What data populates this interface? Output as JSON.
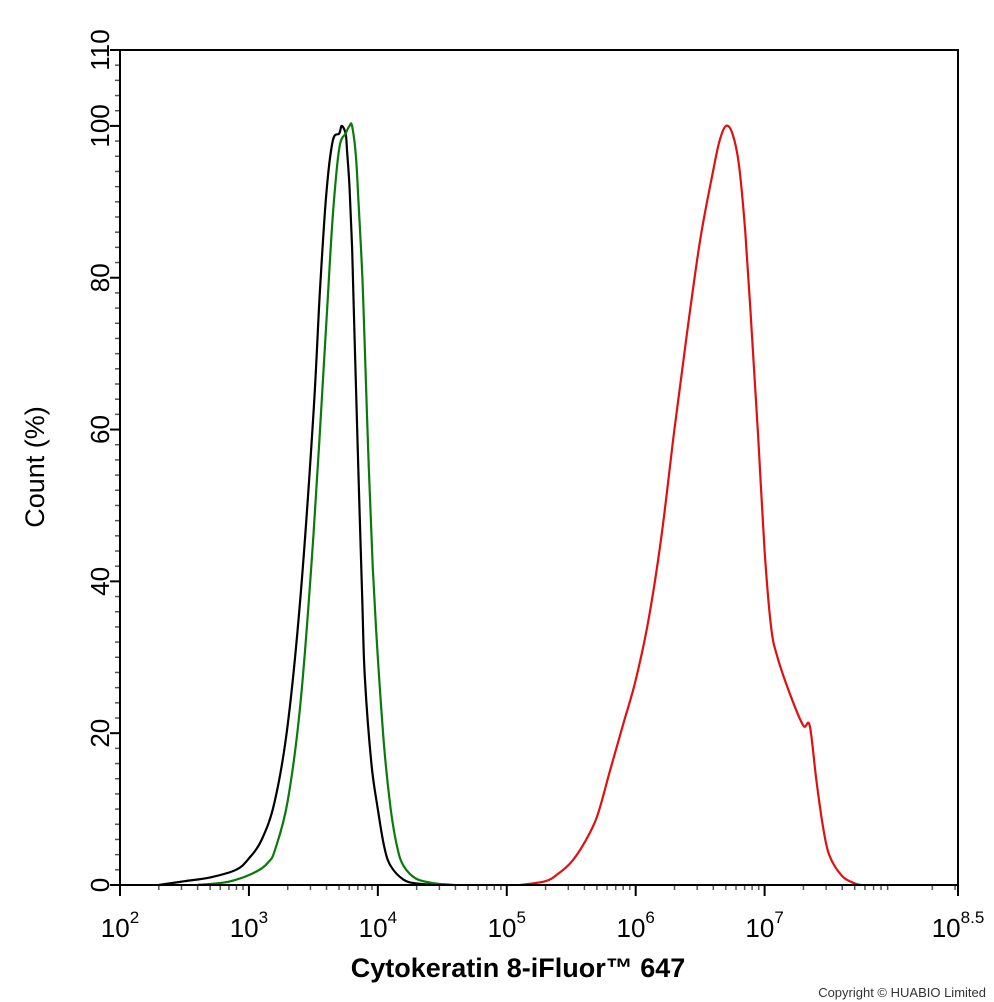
{
  "chart_data": {
    "type": "line",
    "title": "",
    "xlabel": "Cytokeratin 8-iFluor™ 647",
    "ylabel": "Count  (%)",
    "xscale": "log",
    "xlim_log10": [
      2,
      8.5
    ],
    "ylim": [
      0,
      110
    ],
    "x_ticks": [
      {
        "base": "10",
        "exp": "2"
      },
      {
        "base": "10",
        "exp": "3"
      },
      {
        "base": "10",
        "exp": "4"
      },
      {
        "base": "10",
        "exp": "5"
      },
      {
        "base": "10",
        "exp": "6"
      },
      {
        "base": "10",
        "exp": "7"
      },
      {
        "base": "10",
        "exp": "8.5"
      }
    ],
    "y_ticks": [
      "0",
      "20",
      "40",
      "60",
      "80",
      "100",
      "110"
    ],
    "grid": false,
    "legend": "none",
    "series": [
      {
        "color": "#000000",
        "log10_x": [
          2.3,
          2.5,
          2.7,
          2.9,
          3.0,
          3.1,
          3.2,
          3.3,
          3.4,
          3.5,
          3.55,
          3.6,
          3.65,
          3.7,
          3.72,
          3.75,
          3.76,
          3.78,
          3.8,
          3.82,
          3.85,
          3.88,
          3.9,
          3.95,
          4.0,
          4.05,
          4.1,
          4.2,
          4.3,
          4.45
        ],
        "values": [
          0,
          0.5,
          1,
          2,
          3.5,
          6,
          11,
          21,
          38,
          62,
          78,
          91,
          98,
          99,
          100,
          99,
          97,
          92,
          84,
          72,
          54,
          37,
          27,
          16,
          10,
          5,
          2.5,
          0.7,
          0.2,
          0
        ]
      },
      {
        "color": "#0a7a0a",
        "log10_x": [
          2.6,
          2.8,
          2.9,
          3.0,
          3.1,
          3.15,
          3.2,
          3.3,
          3.4,
          3.5,
          3.6,
          3.65,
          3.7,
          3.75,
          3.78,
          3.8,
          3.83,
          3.85,
          3.88,
          3.9,
          3.93,
          3.96,
          4.0,
          4.05,
          4.1,
          4.15,
          4.2,
          4.3,
          4.45,
          4.6
        ],
        "values": [
          0,
          0.3,
          0.7,
          1.3,
          2.2,
          3,
          4.5,
          11,
          24,
          46,
          74,
          88,
          97,
          99,
          100,
          100,
          96,
          90,
          80,
          70,
          55,
          42,
          30,
          18,
          10,
          5,
          2.5,
          0.8,
          0.2,
          0
        ]
      },
      {
        "color": "#e01010",
        "log10_x": [
          5.1,
          5.3,
          5.4,
          5.5,
          5.6,
          5.7,
          5.8,
          5.9,
          6.0,
          6.1,
          6.2,
          6.3,
          6.4,
          6.5,
          6.6,
          6.65,
          6.7,
          6.75,
          6.8,
          6.85,
          6.9,
          6.95,
          7.0,
          7.05,
          7.1,
          7.2,
          7.3,
          7.35,
          7.4,
          7.45,
          7.5,
          7.6,
          7.7,
          7.75
        ],
        "values": [
          0,
          0.5,
          1.5,
          3,
          5.5,
          9,
          15,
          21,
          27,
          35,
          46,
          60,
          73,
          85,
          94,
          98,
          100,
          99,
          95,
          86,
          73,
          59,
          44,
          34,
          30,
          25,
          21,
          21,
          14,
          8,
          4,
          1.2,
          0.2,
          0
        ]
      }
    ]
  },
  "copyright": "Copyright © HUABIO Limited"
}
